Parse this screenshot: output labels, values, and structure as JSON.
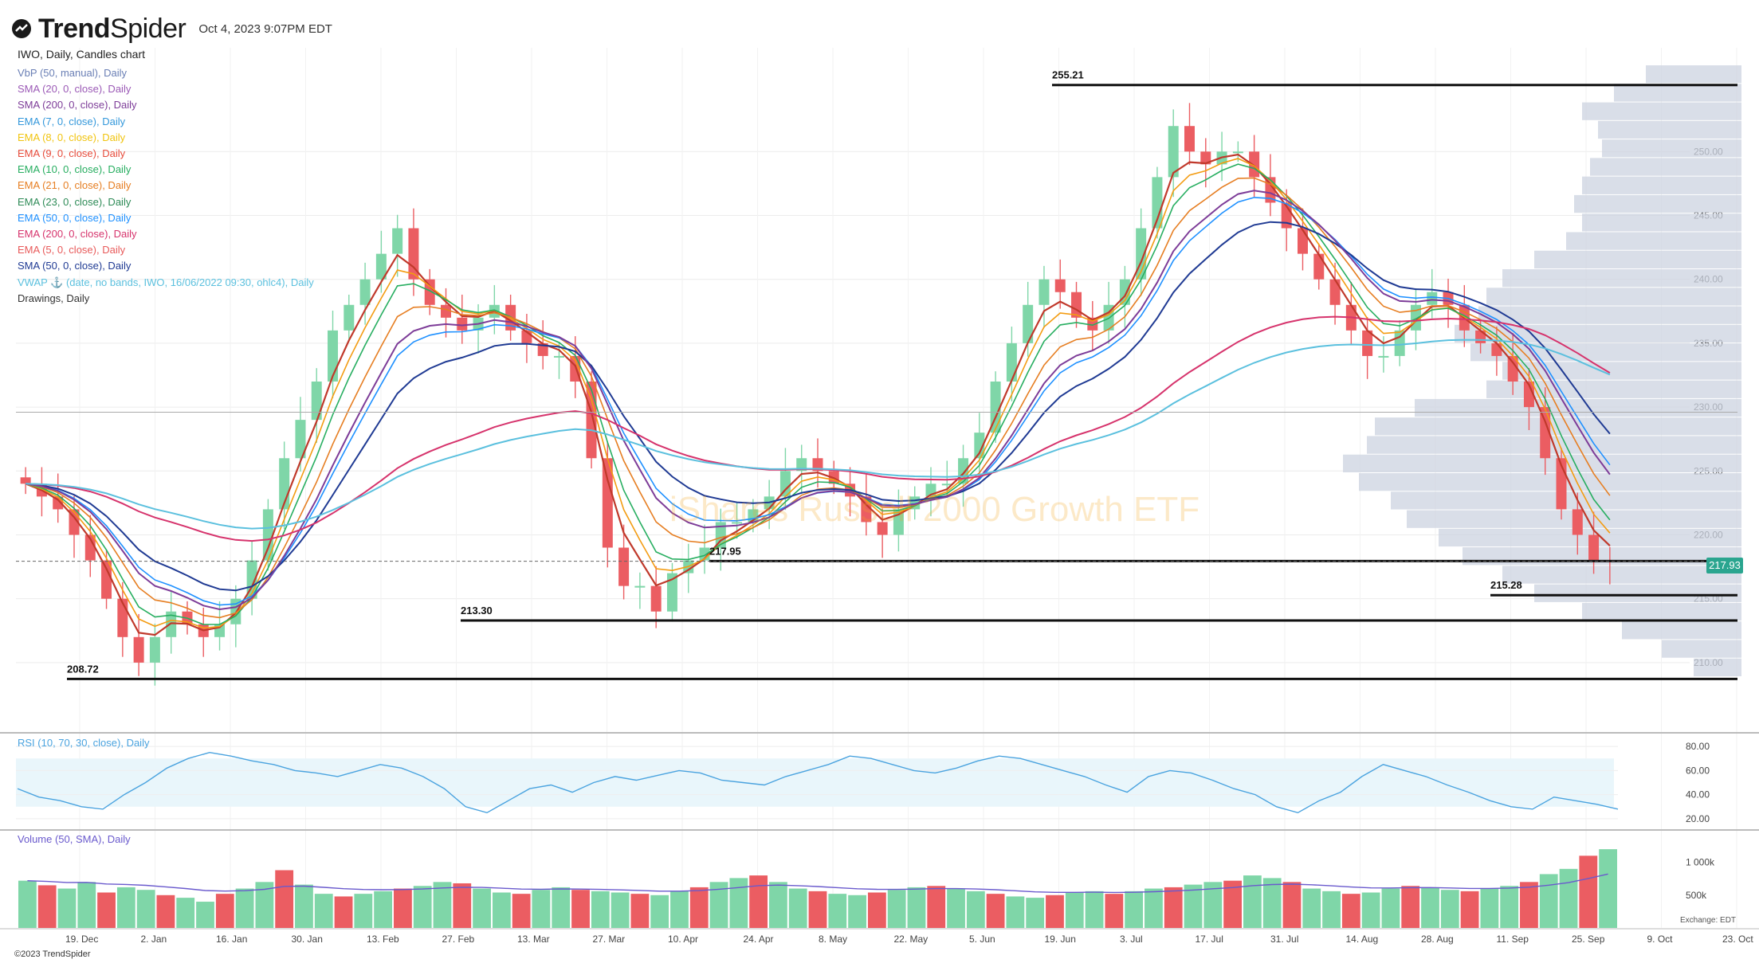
{
  "header": {
    "brand_part1": "Trend",
    "brand_part2": "Spider",
    "timestamp": "Oct 4, 2023 9:07PM EDT",
    "chart_title": "IWO, Daily, Candles chart"
  },
  "legend": [
    {
      "text": "VbP (50, manual), Daily",
      "color": "#6a7fb5"
    },
    {
      "text": "SMA (20, 0, close), Daily",
      "color": "#9b59b6"
    },
    {
      "text": "SMA (200, 0, close), Daily",
      "color": "#7d3c98"
    },
    {
      "text": "EMA (7, 0, close), Daily",
      "color": "#3498db"
    },
    {
      "text": "EMA (8, 0, close), Daily",
      "color": "#f1c40f"
    },
    {
      "text": "EMA (9, 0, close), Daily",
      "color": "#e74c3c"
    },
    {
      "text": "EMA (10, 0, close), Daily",
      "color": "#27ae60"
    },
    {
      "text": "EMA (21, 0, close), Daily",
      "color": "#e67e22"
    },
    {
      "text": "EMA (23, 0, close), Daily",
      "color": "#2e8b57"
    },
    {
      "text": "EMA (50, 0, close), Daily",
      "color": "#1e90ff"
    },
    {
      "text": "EMA (200, 0, close), Daily",
      "color": "#d6336c"
    },
    {
      "text": "EMA (5, 0, close), Daily",
      "color": "#e85a5a"
    },
    {
      "text": "SMA (50, 0, close), Daily",
      "color": "#1f3a93"
    },
    {
      "text": "VWAP ⚓ (date, no bands, IWO, 16/06/2022 09:30, ohlc4), Daily",
      "color": "#5bc0de"
    },
    {
      "text": "Drawings, Daily",
      "color": "#333333"
    }
  ],
  "price_levels": [
    {
      "label": "255.21",
      "value": 255.21
    },
    {
      "label": "217.95",
      "value": 217.95
    },
    {
      "label": "215.28",
      "value": 215.28
    },
    {
      "label": "213.30",
      "value": 213.3
    },
    {
      "label": "208.72",
      "value": 208.72
    }
  ],
  "current_price": "217.93",
  "watermark": "iShares Russell 2000 Growth ETF",
  "rsi": {
    "label": "RSI (10, 70, 30, close), Daily",
    "ticks": [
      "80.00",
      "60.00",
      "40.00",
      "20.00"
    ]
  },
  "volume": {
    "label": "Volume (50, SMA), Daily",
    "ticks": [
      "1 000k",
      "500k"
    ]
  },
  "exchange": "Exchange: EDT",
  "copyright": "©2023 TrendSpider",
  "colors": {
    "up": "#7fd6a8",
    "down": "#eb5d62",
    "vbp": "#ccd3e0"
  },
  "chart_data": {
    "type": "candlestick",
    "symbol": "IWO",
    "interval": "Daily",
    "price_ticks": [
      "250.00",
      "245.00",
      "240.00",
      "235.00",
      "230.00",
      "225.00",
      "220.00",
      "215.00",
      "210.00"
    ],
    "date_ticks": [
      "19. Dec",
      "2. Jan",
      "16. Jan",
      "30. Jan",
      "13. Feb",
      "27. Feb",
      "13. Mar",
      "27. Mar",
      "10. Apr",
      "24. Apr",
      "8. May",
      "22. May",
      "5. Jun",
      "19. Jun",
      "3. Jul",
      "17. Jul",
      "31. Jul",
      "14. Aug",
      "28. Aug",
      "11. Sep",
      "25. Sep",
      "9. Oct",
      "23. Oct"
    ],
    "close_path": [
      224,
      223,
      222,
      220,
      218,
      215,
      212,
      210,
      212,
      214,
      213,
      212,
      213,
      215,
      218,
      222,
      226,
      229,
      232,
      236,
      238,
      240,
      242,
      244,
      240,
      238,
      237,
      236,
      237,
      238,
      236,
      235,
      234,
      234,
      232,
      226,
      219,
      216,
      216,
      214,
      217,
      218,
      219,
      221,
      221,
      222,
      223,
      225,
      226,
      225,
      224,
      223,
      221,
      220,
      222,
      223,
      224,
      224,
      226,
      228,
      232,
      235,
      238,
      240,
      239,
      237,
      236,
      238,
      240,
      244,
      248,
      252,
      250,
      249,
      250,
      250,
      248,
      246,
      244,
      242,
      240,
      238,
      236,
      234,
      234,
      236,
      238,
      239,
      238,
      236,
      235,
      234,
      232,
      230,
      226,
      222,
      220,
      218,
      217.93
    ],
    "rsi_path": [
      45,
      38,
      35,
      30,
      28,
      40,
      50,
      62,
      70,
      75,
      72,
      68,
      65,
      60,
      58,
      55,
      60,
      65,
      62,
      55,
      45,
      30,
      25,
      35,
      45,
      48,
      42,
      50,
      55,
      52,
      56,
      60,
      58,
      52,
      50,
      48,
      55,
      60,
      65,
      72,
      70,
      65,
      60,
      58,
      62,
      68,
      72,
      70,
      65,
      60,
      55,
      48,
      42,
      55,
      60,
      58,
      52,
      45,
      40,
      30,
      25,
      35,
      42,
      55,
      65,
      60,
      55,
      48,
      42,
      35,
      30,
      28,
      38,
      35,
      32,
      28
    ],
    "volume_path": [
      720,
      650,
      600,
      700,
      540,
      620,
      580,
      500,
      460,
      400,
      520,
      600,
      700,
      880,
      660,
      520,
      480,
      520,
      560,
      600,
      640,
      700,
      680,
      600,
      540,
      520,
      580,
      620,
      580,
      560,
      540,
      520,
      500,
      560,
      620,
      700,
      760,
      800,
      700,
      600,
      560,
      520,
      500,
      540,
      580,
      620,
      640,
      600,
      560,
      520,
      480,
      460,
      500,
      540,
      560,
      520,
      560,
      600,
      620,
      660,
      700,
      720,
      800,
      760,
      700,
      600,
      560,
      520,
      540,
      600,
      640,
      620,
      580,
      560,
      600,
      640,
      700,
      820,
      900,
      1100,
      1200
    ]
  }
}
